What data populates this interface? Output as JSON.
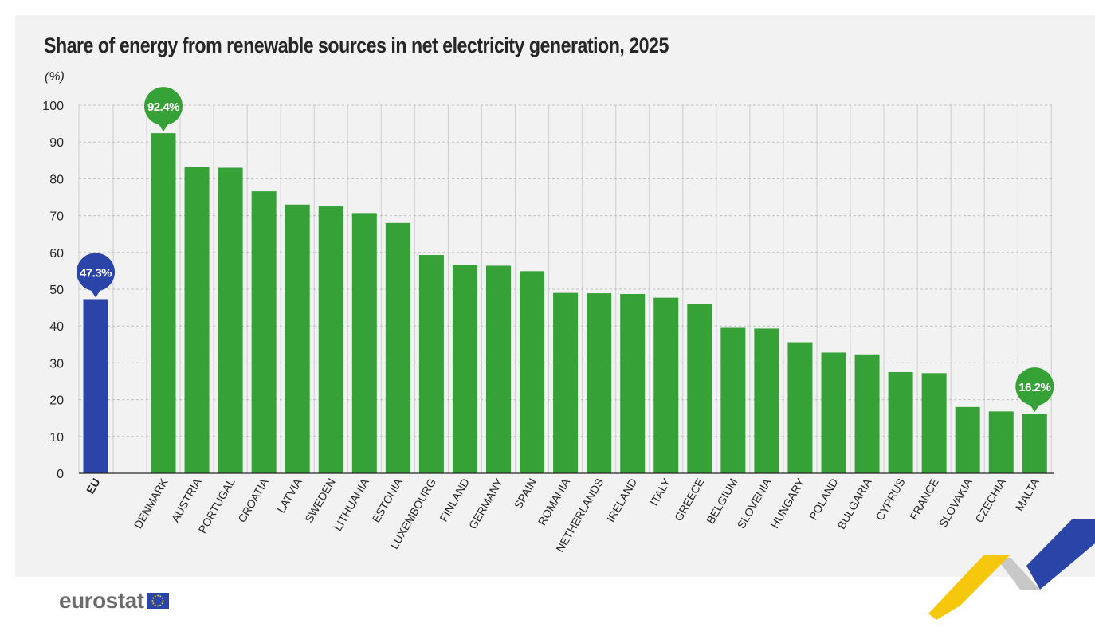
{
  "chart_data": {
    "type": "bar",
    "title": "Share of energy from renewable sources in net electricity generation, 2025",
    "unit": "(%)",
    "ylim": [
      0,
      100
    ],
    "yticks": [
      0,
      10,
      20,
      30,
      40,
      50,
      60,
      70,
      80,
      90,
      100
    ],
    "grid": true,
    "categories": [
      "EU",
      "DENMARK",
      "AUSTRIA",
      "PORTUGAL",
      "CROATIA",
      "LATVIA",
      "SWEDEN",
      "LITHUANIA",
      "ESTONIA",
      "LUXEMBOURG",
      "FINLAND",
      "GERMANY",
      "SPAIN",
      "ROMANIA",
      "NETHERLANDS",
      "IRELAND",
      "ITALY",
      "GREECE",
      "BELGIUM",
      "SLOVENIA",
      "HUNGARY",
      "POLAND",
      "BULGARIA",
      "CYPRUS",
      "FRANCE",
      "SLOVAKIA",
      "CZECHIA",
      "MALTA"
    ],
    "values": [
      47.3,
      92.4,
      83.2,
      83.0,
      76.6,
      73.0,
      72.5,
      70.7,
      68.0,
      59.3,
      56.6,
      56.4,
      54.9,
      49.0,
      48.9,
      48.7,
      47.7,
      46.1,
      39.5,
      39.3,
      35.6,
      32.8,
      32.3,
      27.5,
      27.2,
      18.0,
      16.8,
      16.2
    ],
    "callouts": [
      {
        "category": "EU",
        "label": "47.3%"
      },
      {
        "category": "DENMARK",
        "label": "92.4%"
      },
      {
        "category": "MALTA",
        "label": "16.2%"
      }
    ],
    "colors": {
      "eu": "#2a44a8",
      "countries": "#35a137",
      "eu_callout": "#2a44a8",
      "country_callout": "#35a137"
    }
  },
  "brand": {
    "name": "eurostat"
  }
}
